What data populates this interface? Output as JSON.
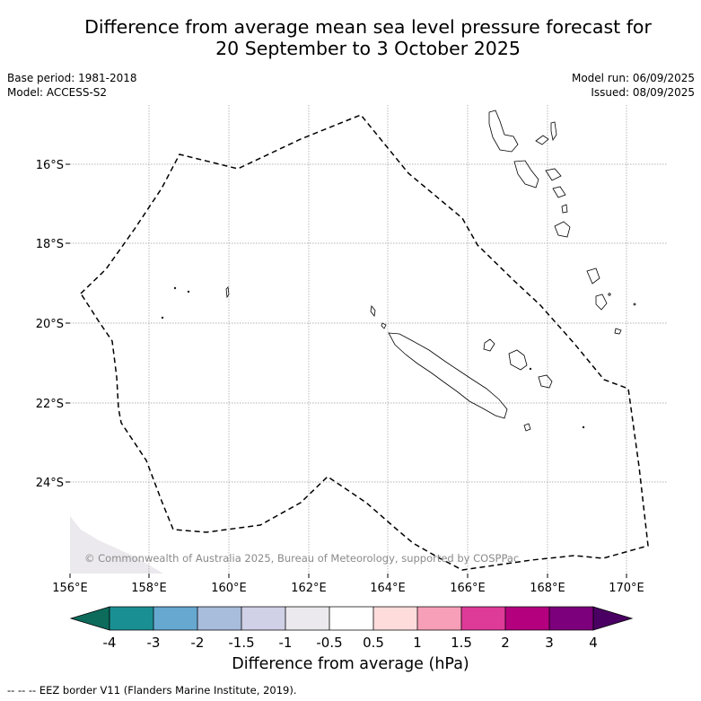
{
  "title_line1": "Difference from average mean sea level pressure forecast for",
  "title_line2": "20 September to 3 October 2025",
  "meta": {
    "base_period": "Base period: 1981-2018",
    "model": "Model: ACCESS-S2",
    "model_run": "Model run: 06/09/2025",
    "issued": "Issued: 08/09/2025"
  },
  "copyright": "© Commonwealth of Australia 2025, Bureau of Meteorology, supported by COSPPac",
  "axes": {
    "lon_ticks": [
      "156°E",
      "158°E",
      "160°E",
      "162°E",
      "164°E",
      "166°E",
      "168°E",
      "170°E"
    ],
    "lat_ticks": [
      "16°S",
      "18°S",
      "20°S",
      "22°S",
      "24°S"
    ]
  },
  "colorbar": {
    "label": "Difference from average (hPa)",
    "ticks": [
      "-4",
      "-3",
      "-2",
      "-1.5",
      "-1",
      "-0.5",
      "0.5",
      "1",
      "1.5",
      "2",
      "3",
      "4"
    ],
    "colors": {
      "under": "#0d6b5c",
      "bins": [
        "#1a8f93",
        "#66a8d0",
        "#a8bcdc",
        "#d0d0e6",
        "#ebe9ed",
        "#ffffff",
        "#ffdcdc",
        "#f79fb8",
        "#de3a98",
        "#b4007f",
        "#7c007c"
      ],
      "over": "#4a0063"
    }
  },
  "legend_note": "--  --  -- EEZ border V11 (Flanders Marine Institute, 2019)."
}
